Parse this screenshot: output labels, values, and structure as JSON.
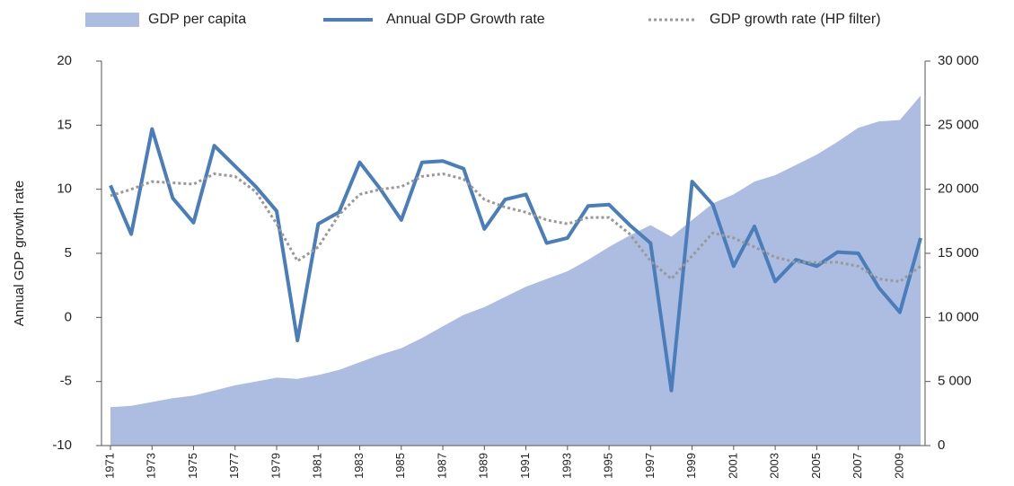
{
  "chart_data": {
    "type": "line",
    "y_label": "Annual GDP growth rate",
    "x": [
      1971,
      1972,
      1973,
      1974,
      1975,
      1976,
      1977,
      1978,
      1979,
      1980,
      1981,
      1982,
      1983,
      1984,
      1985,
      1986,
      1987,
      1988,
      1989,
      1990,
      1991,
      1992,
      1993,
      1994,
      1995,
      1996,
      1997,
      1998,
      1999,
      2000,
      2001,
      2002,
      2003,
      2004,
      2005,
      2006,
      2007,
      2008,
      2009,
      2010
    ],
    "xlim": [
      1971,
      2010
    ],
    "xticks": [
      1971,
      1973,
      1975,
      1977,
      1979,
      1981,
      1983,
      1985,
      1987,
      1989,
      1991,
      1993,
      1995,
      1997,
      1999,
      2001,
      2003,
      2005,
      2007,
      2009
    ],
    "ylim": [
      -10,
      20
    ],
    "yticks": [
      -10,
      -5,
      0,
      5,
      10,
      15,
      20
    ],
    "y2lim": [
      0,
      30000
    ],
    "y2ticks": [
      0,
      {
        "value": 5000,
        "label": "5 000"
      },
      {
        "value": 10000,
        "label": "10 000"
      },
      {
        "value": 15000,
        "label": "15 000"
      },
      {
        "value": 20000,
        "label": "20 000"
      },
      {
        "value": 25000,
        "label": "25 000"
      },
      {
        "value": 30000,
        "label": "30 000"
      }
    ],
    "series": [
      {
        "name": "GDP per capita",
        "type": "area",
        "axis": "y2",
        "color": "#adbde1",
        "values": [
          3000,
          3100,
          3400,
          3700,
          3900,
          4300,
          4700,
          5000,
          5300,
          5200,
          5500,
          5900,
          6500,
          7100,
          7600,
          8400,
          9300,
          10200,
          10800,
          11600,
          12400,
          13000,
          13600,
          14500,
          15500,
          16400,
          17200,
          16300,
          17600,
          18900,
          19600,
          20600,
          21100,
          21900,
          22700,
          23700,
          24800,
          25300,
          25400,
          27300
        ]
      },
      {
        "name": "Annual GDP Growth rate",
        "type": "line",
        "color": "#4a7ebb",
        "values": [
          10.3,
          6.5,
          14.7,
          9.3,
          7.4,
          13.4,
          11.8,
          10.2,
          8.3,
          -1.8,
          7.3,
          8.2,
          12.1,
          10.0,
          7.6,
          12.1,
          12.2,
          11.6,
          6.9,
          9.2,
          9.6,
          5.8,
          6.2,
          8.7,
          8.8,
          7.2,
          5.8,
          -5.7,
          10.6,
          8.8,
          4.0,
          7.1,
          2.8,
          4.5,
          4.0,
          5.1,
          5.0,
          2.3,
          0.4,
          6.2
        ]
      },
      {
        "name": "GDP growth rate (HP filter)",
        "type": "dotted",
        "color": "#999999",
        "values": [
          9.5,
          10.0,
          10.6,
          10.5,
          10.4,
          11.2,
          11.0,
          9.8,
          7.3,
          4.4,
          5.5,
          8.0,
          9.6,
          10.0,
          10.2,
          11.0,
          11.2,
          10.8,
          9.2,
          8.6,
          8.2,
          7.6,
          7.3,
          7.8,
          7.8,
          6.5,
          4.4,
          3.0,
          4.8,
          6.6,
          6.2,
          5.5,
          4.7,
          4.3,
          4.3,
          4.3,
          4.0,
          3.0,
          2.8,
          4.0
        ]
      }
    ]
  }
}
